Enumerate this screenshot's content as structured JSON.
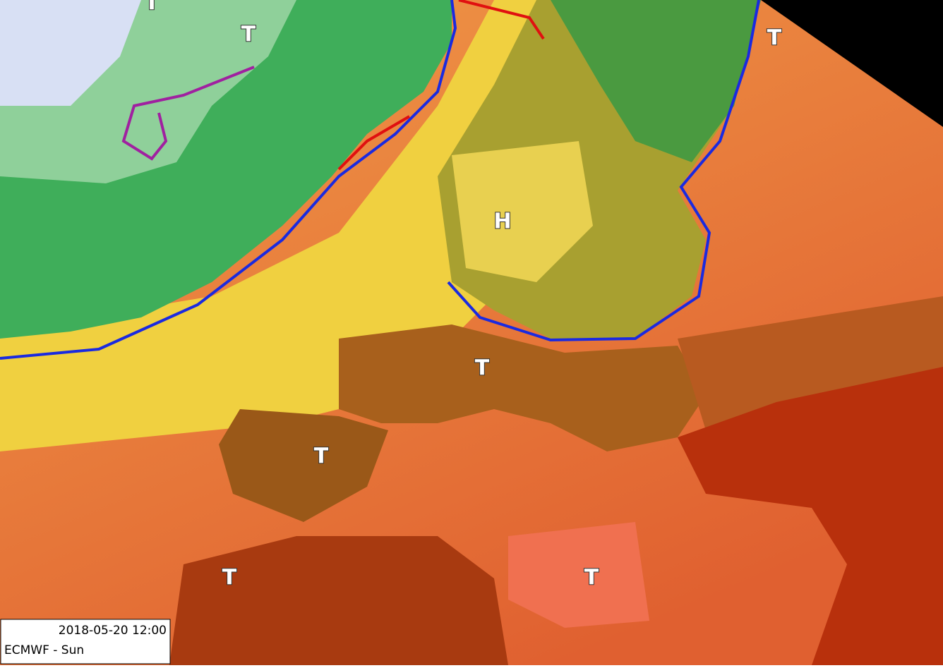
{
  "map_labels": [
    "T",
    "T",
    "T",
    "H",
    "T",
    "T",
    "T",
    "T"
  ],
  "info": {
    "datetime": "2018-05-20 12:00",
    "model": "ECMWF - Sun"
  }
}
